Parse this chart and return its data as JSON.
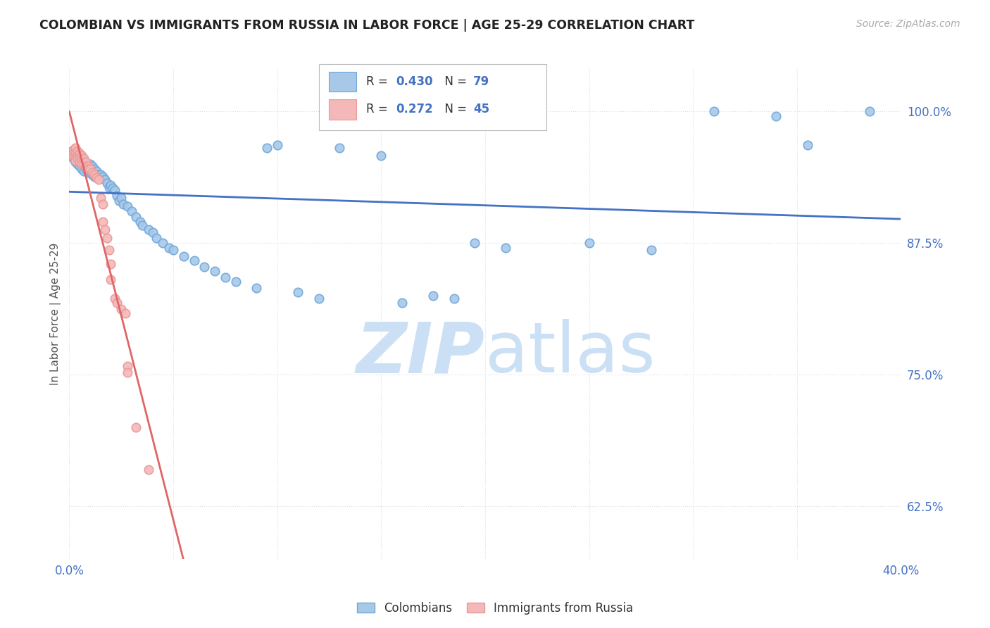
{
  "title": "COLOMBIAN VS IMMIGRANTS FROM RUSSIA IN LABOR FORCE | AGE 25-29 CORRELATION CHART",
  "source": "Source: ZipAtlas.com",
  "ylabel": "In Labor Force | Age 25-29",
  "xlim": [
    0.0,
    0.4
  ],
  "ylim": [
    0.575,
    1.04
  ],
  "yticks": [
    0.625,
    0.75,
    0.875,
    1.0
  ],
  "ytick_labels": [
    "62.5%",
    "75.0%",
    "87.5%",
    "100.0%"
  ],
  "xticks": [
    0.0,
    0.05,
    0.1,
    0.15,
    0.2,
    0.25,
    0.3,
    0.35,
    0.4
  ],
  "xtick_labels": [
    "0.0%",
    "",
    "",
    "",
    "",
    "",
    "",
    "",
    "40.0%"
  ],
  "blue_R": 0.43,
  "blue_N": 79,
  "pink_R": 0.272,
  "pink_N": 45,
  "blue_scatter": [
    [
      0.001,
      0.96
    ],
    [
      0.001,
      0.958
    ],
    [
      0.002,
      0.962
    ],
    [
      0.002,
      0.958
    ],
    [
      0.002,
      0.955
    ],
    [
      0.003,
      0.96
    ],
    [
      0.003,
      0.955
    ],
    [
      0.003,
      0.952
    ],
    [
      0.004,
      0.958
    ],
    [
      0.004,
      0.953
    ],
    [
      0.004,
      0.95
    ],
    [
      0.005,
      0.956
    ],
    [
      0.005,
      0.952
    ],
    [
      0.005,
      0.948
    ],
    [
      0.006,
      0.955
    ],
    [
      0.006,
      0.95
    ],
    [
      0.006,
      0.945
    ],
    [
      0.007,
      0.952
    ],
    [
      0.007,
      0.948
    ],
    [
      0.007,
      0.943
    ],
    [
      0.008,
      0.95
    ],
    [
      0.008,
      0.945
    ],
    [
      0.009,
      0.948
    ],
    [
      0.009,
      0.942
    ],
    [
      0.01,
      0.95
    ],
    [
      0.01,
      0.943
    ],
    [
      0.011,
      0.948
    ],
    [
      0.011,
      0.94
    ],
    [
      0.012,
      0.945
    ],
    [
      0.012,
      0.938
    ],
    [
      0.013,
      0.943
    ],
    [
      0.014,
      0.94
    ],
    [
      0.015,
      0.94
    ],
    [
      0.016,
      0.938
    ],
    [
      0.017,
      0.935
    ],
    [
      0.018,
      0.932
    ],
    [
      0.019,
      0.928
    ],
    [
      0.02,
      0.93
    ],
    [
      0.021,
      0.927
    ],
    [
      0.022,
      0.925
    ],
    [
      0.023,
      0.92
    ],
    [
      0.024,
      0.915
    ],
    [
      0.025,
      0.918
    ],
    [
      0.026,
      0.912
    ],
    [
      0.028,
      0.91
    ],
    [
      0.03,
      0.905
    ],
    [
      0.032,
      0.9
    ],
    [
      0.034,
      0.895
    ],
    [
      0.035,
      0.892
    ],
    [
      0.038,
      0.888
    ],
    [
      0.04,
      0.885
    ],
    [
      0.042,
      0.88
    ],
    [
      0.045,
      0.875
    ],
    [
      0.048,
      0.87
    ],
    [
      0.05,
      0.868
    ],
    [
      0.055,
      0.862
    ],
    [
      0.06,
      0.858
    ],
    [
      0.065,
      0.852
    ],
    [
      0.07,
      0.848
    ],
    [
      0.075,
      0.842
    ],
    [
      0.08,
      0.838
    ],
    [
      0.09,
      0.832
    ],
    [
      0.095,
      0.965
    ],
    [
      0.1,
      0.968
    ],
    [
      0.11,
      0.828
    ],
    [
      0.12,
      0.822
    ],
    [
      0.13,
      0.965
    ],
    [
      0.15,
      0.958
    ],
    [
      0.16,
      0.818
    ],
    [
      0.175,
      0.825
    ],
    [
      0.185,
      0.822
    ],
    [
      0.195,
      0.875
    ],
    [
      0.21,
      0.87
    ],
    [
      0.25,
      0.875
    ],
    [
      0.28,
      0.868
    ],
    [
      0.31,
      1.0
    ],
    [
      0.34,
      0.995
    ],
    [
      0.355,
      0.968
    ],
    [
      0.385,
      1.0
    ]
  ],
  "pink_scatter": [
    [
      0.001,
      0.962
    ],
    [
      0.001,
      0.96
    ],
    [
      0.002,
      0.963
    ],
    [
      0.002,
      0.96
    ],
    [
      0.002,
      0.957
    ],
    [
      0.003,
      0.965
    ],
    [
      0.003,
      0.96
    ],
    [
      0.003,
      0.956
    ],
    [
      0.003,
      0.953
    ],
    [
      0.004,
      0.962
    ],
    [
      0.004,
      0.958
    ],
    [
      0.004,
      0.955
    ],
    [
      0.005,
      0.96
    ],
    [
      0.005,
      0.956
    ],
    [
      0.005,
      0.952
    ],
    [
      0.006,
      0.958
    ],
    [
      0.006,
      0.954
    ],
    [
      0.006,
      0.95
    ],
    [
      0.007,
      0.955
    ],
    [
      0.007,
      0.95
    ],
    [
      0.008,
      0.952
    ],
    [
      0.008,
      0.948
    ],
    [
      0.009,
      0.948
    ],
    [
      0.009,
      0.945
    ],
    [
      0.01,
      0.945
    ],
    [
      0.011,
      0.942
    ],
    [
      0.012,
      0.94
    ],
    [
      0.013,
      0.937
    ],
    [
      0.014,
      0.935
    ],
    [
      0.015,
      0.918
    ],
    [
      0.016,
      0.912
    ],
    [
      0.016,
      0.895
    ],
    [
      0.017,
      0.888
    ],
    [
      0.018,
      0.88
    ],
    [
      0.019,
      0.868
    ],
    [
      0.02,
      0.855
    ],
    [
      0.02,
      0.84
    ],
    [
      0.022,
      0.822
    ],
    [
      0.023,
      0.818
    ],
    [
      0.025,
      0.812
    ],
    [
      0.027,
      0.808
    ],
    [
      0.028,
      0.758
    ],
    [
      0.028,
      0.752
    ],
    [
      0.032,
      0.7
    ],
    [
      0.038,
      0.66
    ]
  ],
  "blue_color": "#a8c8e8",
  "pink_color": "#f4b8b8",
  "blue_marker_edge": "#6fa8dc",
  "pink_marker_edge": "#ea9999",
  "blue_line_color": "#4472c4",
  "pink_line_color": "#e06666",
  "marker_size": 9,
  "title_color": "#222222",
  "axis_color": "#4472c4",
  "watermark_color": "#cce0f5",
  "background_color": "#ffffff",
  "grid_color": "#dddddd"
}
